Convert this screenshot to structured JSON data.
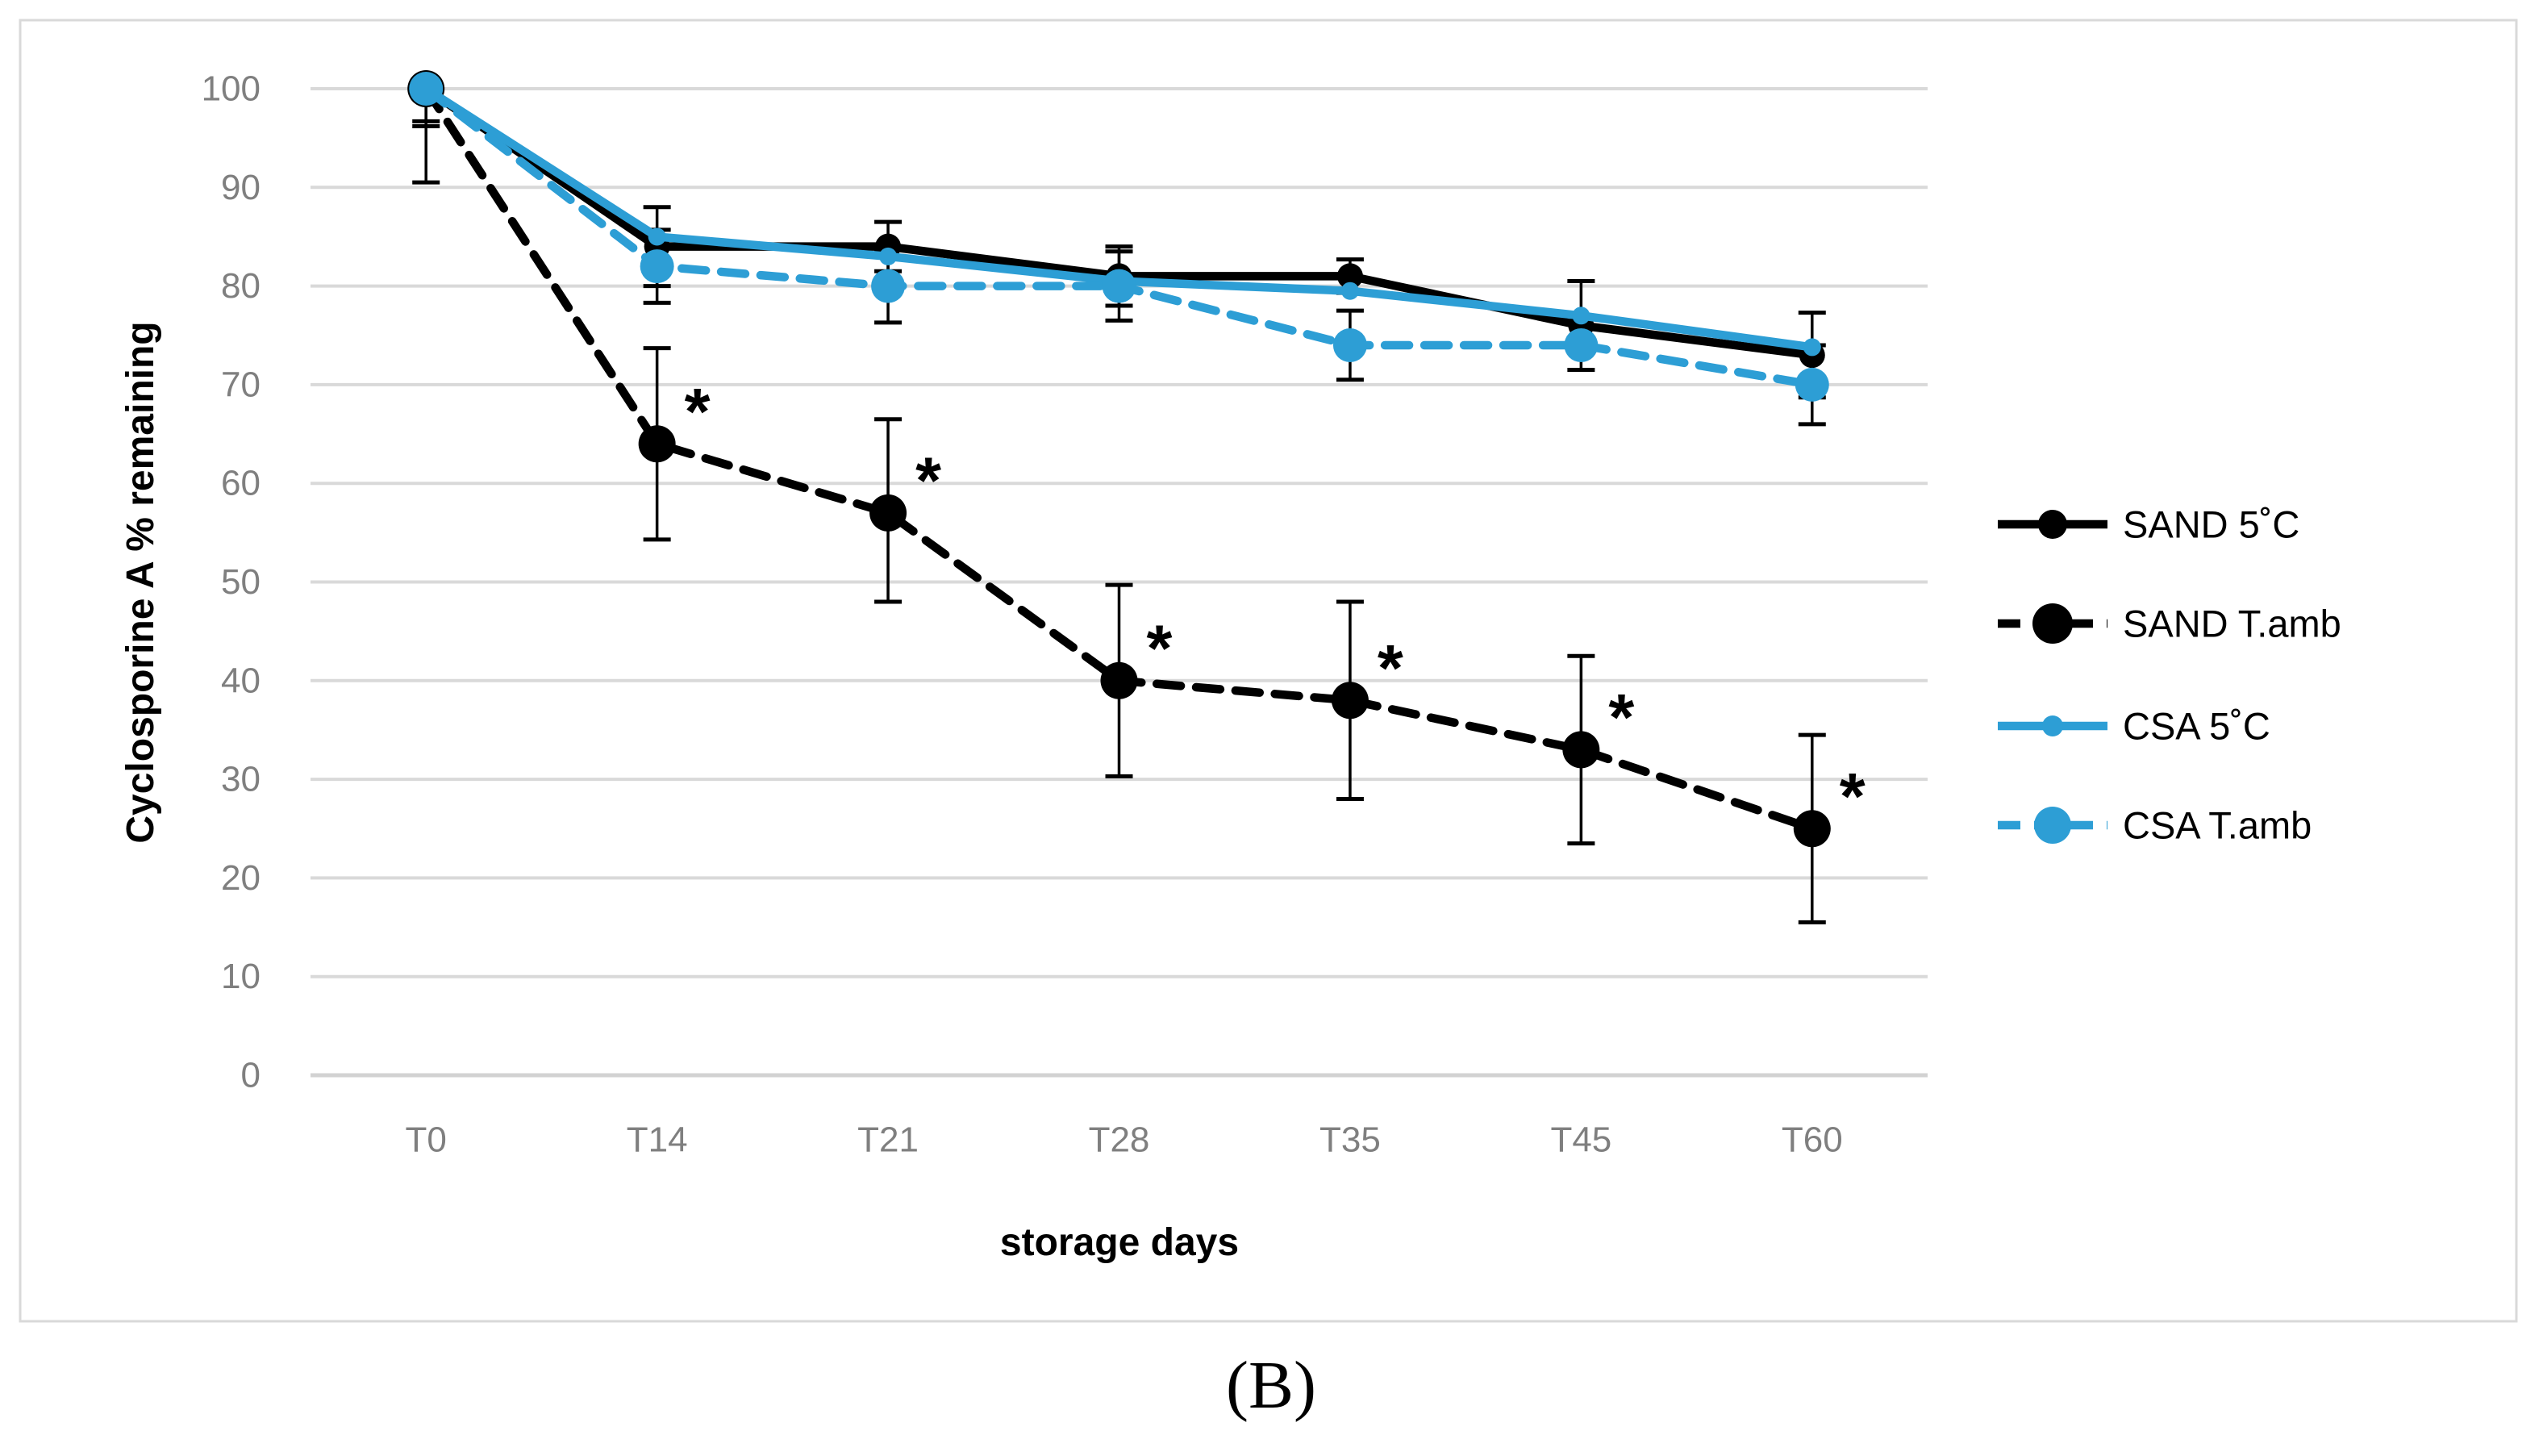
{
  "figure": {
    "caption": "(B)"
  },
  "colors": {
    "series_black": "#000000",
    "series_blue": "#2D9ED5",
    "gridline": "#D9D9D9",
    "axis_line": "#D2D2D2",
    "tick_label": "#7F7F7F",
    "frame_border": "#D9D9D9",
    "background": "#FFFFFF"
  },
  "chart_data": {
    "type": "line",
    "title": "",
    "xlabel": "storage days",
    "ylabel": "Cyclosporine A % remaining",
    "categories": [
      "T0",
      "T14",
      "T21",
      "T28",
      "T35",
      "T45",
      "T60"
    ],
    "ylim": [
      0,
      100
    ],
    "ytick_step": 10,
    "yticks": [
      0,
      10,
      20,
      30,
      40,
      50,
      60,
      70,
      80,
      90,
      100
    ],
    "grid": true,
    "legend_position": "right",
    "significance_marker": "*",
    "series": [
      {
        "name": "SAND 5˚C",
        "color": "#000000",
        "line_style": "solid",
        "marker_radius": 16,
        "values": [
          100,
          84,
          84,
          81,
          81,
          76,
          73
        ],
        "err_up": [
          0,
          4,
          2.5,
          3,
          1.7,
          4.5,
          4.3
        ],
        "err_down": [
          3.3,
          4,
          2.5,
          3,
          1.7,
          4.5,
          4.3
        ],
        "asterisk_points": []
      },
      {
        "name": "SAND T.amb",
        "color": "#000000",
        "line_style": "dashed",
        "marker_radius": 23,
        "values": [
          100,
          64,
          57,
          40,
          38,
          33,
          25
        ],
        "err_up": [
          0,
          9.7,
          9.5,
          9.7,
          10,
          9.5,
          9.5
        ],
        "err_down": [
          9.5,
          9.7,
          9,
          9.7,
          10,
          9.5,
          9.5
        ],
        "asterisk_points": [
          1,
          2,
          3,
          4,
          5,
          6
        ]
      },
      {
        "name": "CSA 5˚C",
        "color": "#2D9ED5",
        "line_style": "solid",
        "marker_radius": 11,
        "values": [
          100,
          85,
          83,
          80.5,
          79.5,
          77,
          73.8
        ],
        "err_up": [
          0,
          0,
          0,
          0,
          0,
          0,
          0
        ],
        "err_down": [
          3.8,
          0,
          0,
          0,
          0,
          0,
          0
        ],
        "asterisk_points": []
      },
      {
        "name": "CSA T.amb",
        "color": "#2D9ED5",
        "line_style": "dashed",
        "marker_radius": 21,
        "values": [
          100,
          82,
          80,
          80,
          74,
          74,
          70
        ],
        "err_up": [
          0,
          3.7,
          3.7,
          3.5,
          3.5,
          0,
          4
        ],
        "err_down": [
          0,
          3.7,
          3.7,
          3.5,
          3.5,
          0,
          4
        ],
        "asterisk_points": []
      }
    ]
  }
}
